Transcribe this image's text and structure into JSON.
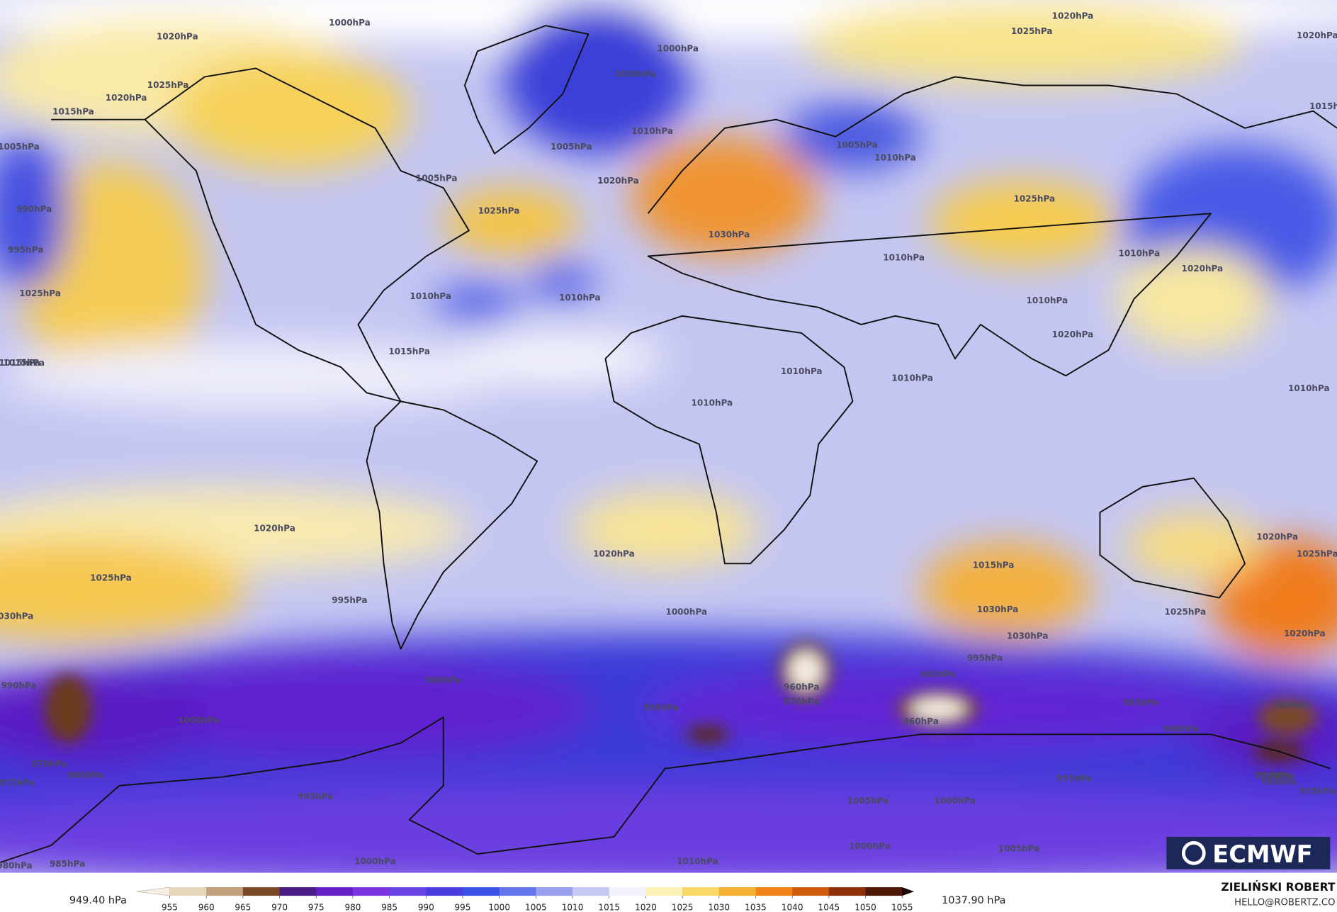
{
  "map": {
    "contour_labels": [
      "1020hPa",
      "1020hPa",
      "1025hPa",
      "1020hPa",
      "1015hPa",
      "1005hPa",
      "990hPa",
      "995hPa",
      "1025hPa",
      "1015hPa",
      "1000hPa",
      "1000hPa",
      "1010hPa",
      "1005hPa",
      "1025hPa",
      "1020hPa",
      "1010hPa",
      "1030hPa",
      "1025hPa",
      "1005hPa",
      "1010hPa",
      "1020hPa",
      "1025hPa",
      "1015hPa",
      "1000hPa",
      "1005hPa",
      "1010hPa",
      "1010hPa",
      "1010hPa",
      "1020hPa",
      "1010hPa",
      "1010hPa",
      "1010hPa",
      "1015hPa",
      "1010hPa",
      "1010hPa",
      "1015hPa",
      "1020hPa",
      "1020hPa",
      "1020hPa",
      "1025hPa",
      "1025hPa",
      "1030hPa",
      "1015hPa",
      "1020hPa",
      "1030hPa",
      "1025hPa",
      "1030hPa",
      "1020hPa",
      "990hPa",
      "995hPa",
      "1000hPa",
      "980hPa",
      "960hPa",
      "970hPa",
      "960hPa",
      "985hPa",
      "995hPa",
      "990hPa",
      "1000hPa",
      "980hPa",
      "970hPa",
      "975hPa",
      "965hPa",
      "985hPa",
      "990hPa",
      "980hPa",
      "995hPa",
      "1005hPa",
      "1000hPa",
      "995hPa",
      "1000hPa",
      "1005hPa",
      "1010hPa",
      "1000hPa",
      "985hPa",
      "980hPa",
      "965hPa",
      "970hPa",
      "975hPa"
    ],
    "colorbar": {
      "min_label": "949.40 hPa",
      "max_label": "1037.90 hPa",
      "ticks": [
        955,
        960,
        965,
        970,
        975,
        980,
        985,
        990,
        995,
        1000,
        1005,
        1010,
        1015,
        1020,
        1025,
        1030,
        1035,
        1040,
        1045,
        1050,
        1055
      ],
      "colors": [
        "#f6efe0",
        "#e6d6bc",
        "#c2a07e",
        "#7a4a26",
        "#4a1c86",
        "#6420c4",
        "#7a34e0",
        "#6a44e2",
        "#4a3ee0",
        "#3c52e6",
        "#6474ea",
        "#9aa0f0",
        "#c6c8f4",
        "#f2f2fa",
        "#fbf2b8",
        "#f8d866",
        "#f4b034",
        "#f08218",
        "#d05a0c",
        "#8e300a",
        "#4e1806",
        "#1a0602"
      ]
    },
    "logo": "ECMWF",
    "author": "ZIELIŃSKI ROBERT",
    "contact": "HELLO@ROBERTZ.CO"
  }
}
